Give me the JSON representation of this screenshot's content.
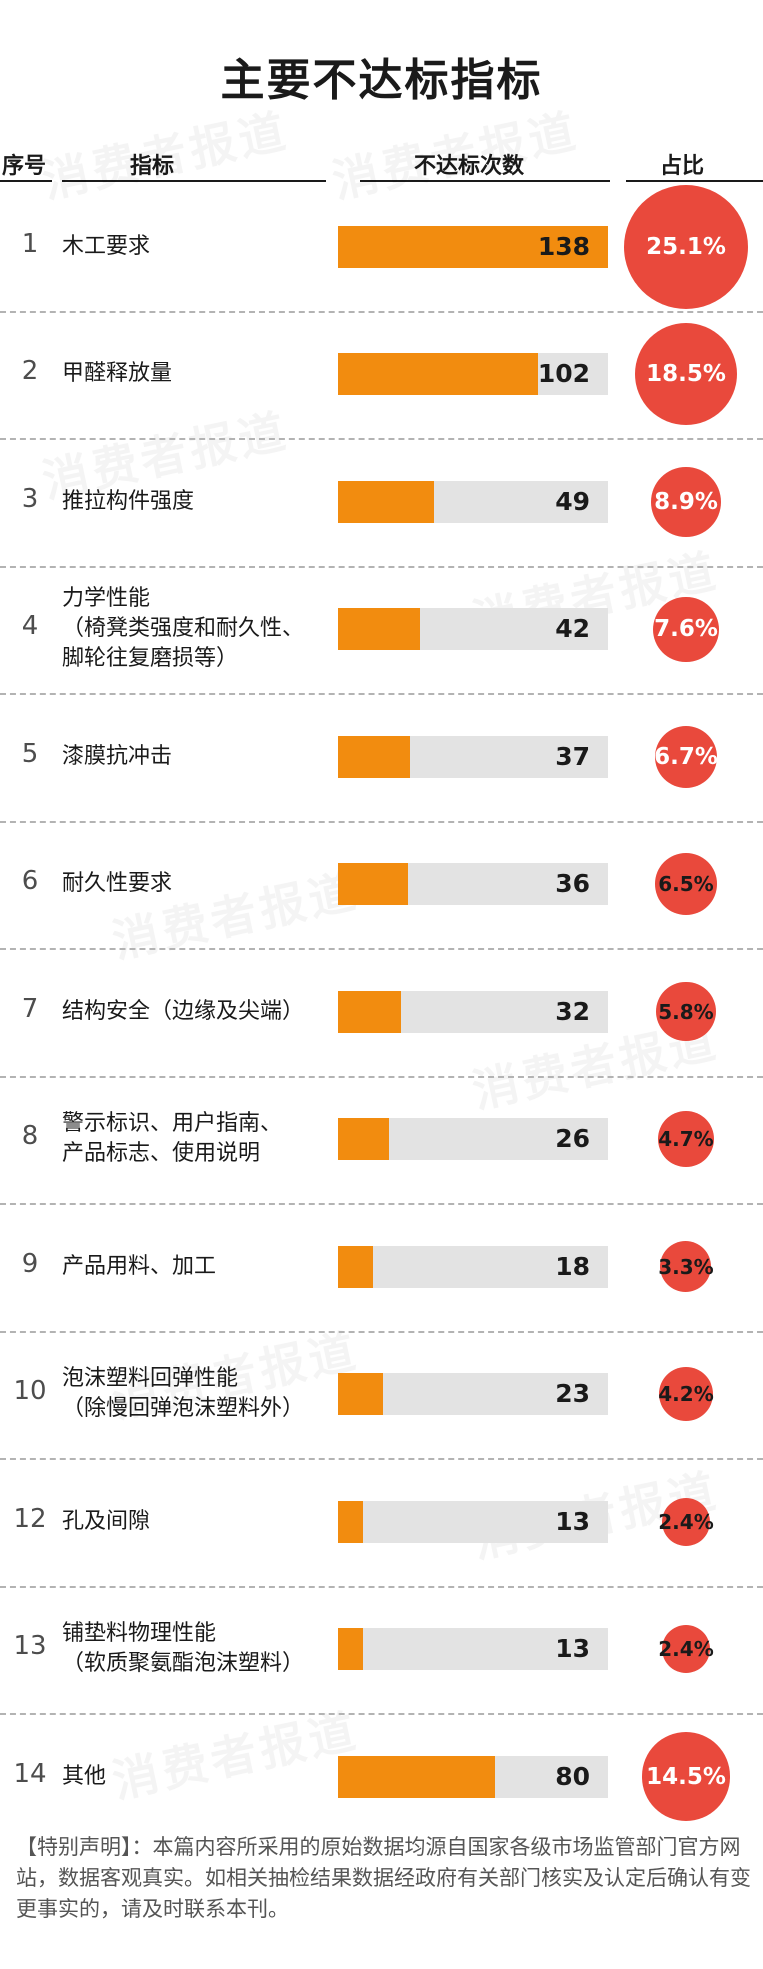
{
  "title": "主要不达标指标",
  "watermark": "消费者报道",
  "headers": {
    "index": "序号",
    "indicator": "指标",
    "count": "不达标次数",
    "share": "占比"
  },
  "colors": {
    "bar": "#f28c0f",
    "track": "#e3e3e3",
    "circle": "#e9493c"
  },
  "chart_data": {
    "type": "bar",
    "orientation": "horizontal",
    "title": "主要不达标指标",
    "max_value": 138,
    "rows": [
      {
        "index": "1",
        "lines": [
          "木工要求"
        ],
        "value": 138,
        "value_label": "138",
        "share": 25.1,
        "share_label": "25.1%"
      },
      {
        "index": "2",
        "lines": [
          "甲醛释放量"
        ],
        "value": 102,
        "value_label": "102",
        "share": 18.5,
        "share_label": "18.5%"
      },
      {
        "index": "3",
        "lines": [
          "推拉构件强度"
        ],
        "value": 49,
        "value_label": "49",
        "share": 8.9,
        "share_label": "8.9%"
      },
      {
        "index": "4",
        "lines": [
          "力学性能",
          "（椅凳类强度和耐久性、",
          "脚轮往复磨损等）"
        ],
        "value": 42,
        "value_label": "42",
        "share": 7.6,
        "share_label": "7.6%"
      },
      {
        "index": "5",
        "lines": [
          "漆膜抗冲击"
        ],
        "value": 37,
        "value_label": "37",
        "share": 6.7,
        "share_label": "6.7%"
      },
      {
        "index": "6",
        "lines": [
          "耐久性要求"
        ],
        "value": 36,
        "value_label": "36",
        "share": 6.5,
        "share_label": "6.5%"
      },
      {
        "index": "7",
        "lines": [
          "结构安全（边缘及尖端）"
        ],
        "value": 32,
        "value_label": "32",
        "share": 5.8,
        "share_label": "5.8%"
      },
      {
        "index": "8",
        "lines": [
          "警示标识、用户指南、",
          "产品标志、使用说明"
        ],
        "value": 26,
        "value_label": "26",
        "share": 4.7,
        "share_label": "4.7%"
      },
      {
        "index": "9",
        "lines": [
          "产品用料、加工"
        ],
        "value": 18,
        "value_label": "18",
        "share": 3.3,
        "share_label": "3.3%"
      },
      {
        "index": "10",
        "lines": [
          "泡沫塑料回弹性能",
          "（除慢回弹泡沫塑料外）"
        ],
        "value": 23,
        "value_label": "23",
        "share": 4.2,
        "share_label": "4.2%"
      },
      {
        "index": "12",
        "lines": [
          "孔及间隙"
        ],
        "value": 13,
        "value_label": "13",
        "share": 2.4,
        "share_label": "2.4%"
      },
      {
        "index": "13",
        "lines": [
          "铺垫料物理性能",
          "（软质聚氨酯泡沫塑料）"
        ],
        "value": 13,
        "value_label": "13",
        "share": 2.4,
        "share_label": "2.4%"
      },
      {
        "index": "14",
        "lines": [
          "其他"
        ],
        "value": 80,
        "value_label": "80",
        "share": 14.5,
        "share_label": "14.5%"
      }
    ]
  },
  "footnote": "【特别声明】：本篇内容所采用的原始数据均源自国家各级市场监管部门官方网站，数据客观真实。如相关抽检结果数据经政府有关部门核实及认定后确认有变更事实的，请及时联系本刊。"
}
